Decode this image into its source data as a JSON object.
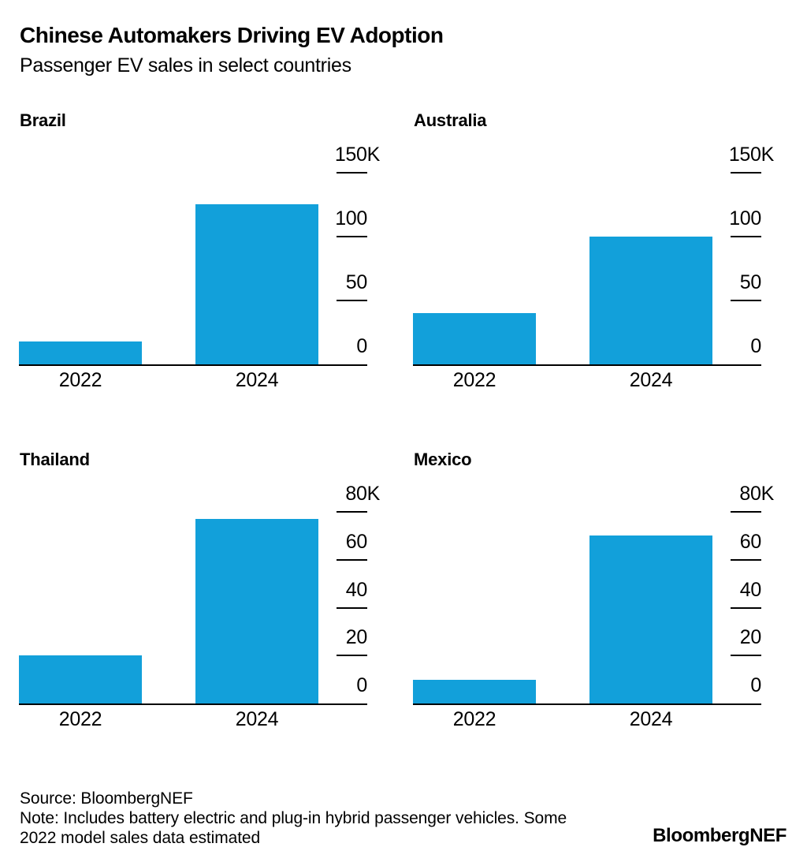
{
  "header": {
    "title": "Chinese Automakers Driving EV Adoption",
    "subtitle": "Passenger EV sales in select countries"
  },
  "colors": {
    "bar": "#12A0DA",
    "axis": "#000000",
    "text": "#000000",
    "background": "#FFFFFF"
  },
  "chart_data": [
    {
      "type": "bar",
      "title": "Brazil",
      "categories": [
        "2022",
        "2024"
      ],
      "values": [
        18000,
        125000
      ],
      "ylim": [
        0,
        150000
      ],
      "grid": false,
      "legend": false,
      "axis_side": "right",
      "yticks": [
        {
          "label": "150K",
          "value": 150000
        },
        {
          "label": "100",
          "value": 100000
        },
        {
          "label": "50",
          "value": 50000
        },
        {
          "label": "0",
          "value": 0
        }
      ]
    },
    {
      "type": "bar",
      "title": "Australia",
      "categories": [
        "2022",
        "2024"
      ],
      "values": [
        40000,
        100000
      ],
      "ylim": [
        0,
        150000
      ],
      "grid": false,
      "legend": false,
      "axis_side": "right",
      "yticks": [
        {
          "label": "150K",
          "value": 150000
        },
        {
          "label": "100",
          "value": 100000
        },
        {
          "label": "50",
          "value": 50000
        },
        {
          "label": "0",
          "value": 0
        }
      ]
    },
    {
      "type": "bar",
      "title": "Thailand",
      "categories": [
        "2022",
        "2024"
      ],
      "values": [
        20000,
        77000
      ],
      "ylim": [
        0,
        80000
      ],
      "grid": false,
      "legend": false,
      "axis_side": "right",
      "yticks": [
        {
          "label": "80K",
          "value": 80000
        },
        {
          "label": "60",
          "value": 60000
        },
        {
          "label": "40",
          "value": 40000
        },
        {
          "label": "20",
          "value": 20000
        },
        {
          "label": "0",
          "value": 0
        }
      ]
    },
    {
      "type": "bar",
      "title": "Mexico",
      "categories": [
        "2022",
        "2024"
      ],
      "values": [
        10000,
        70000
      ],
      "ylim": [
        0,
        80000
      ],
      "grid": false,
      "legend": false,
      "axis_side": "right",
      "yticks": [
        {
          "label": "80K",
          "value": 80000
        },
        {
          "label": "60",
          "value": 60000
        },
        {
          "label": "40",
          "value": 40000
        },
        {
          "label": "20",
          "value": 20000
        },
        {
          "label": "0",
          "value": 0
        }
      ]
    }
  ],
  "footer": {
    "source": "Source: BloombergNEF",
    "note_line1": "Note: Includes battery electric and plug-in hybrid passenger vehicles. Some",
    "note_line2": "2022 model sales data estimated",
    "logo": "BloombergNEF"
  }
}
